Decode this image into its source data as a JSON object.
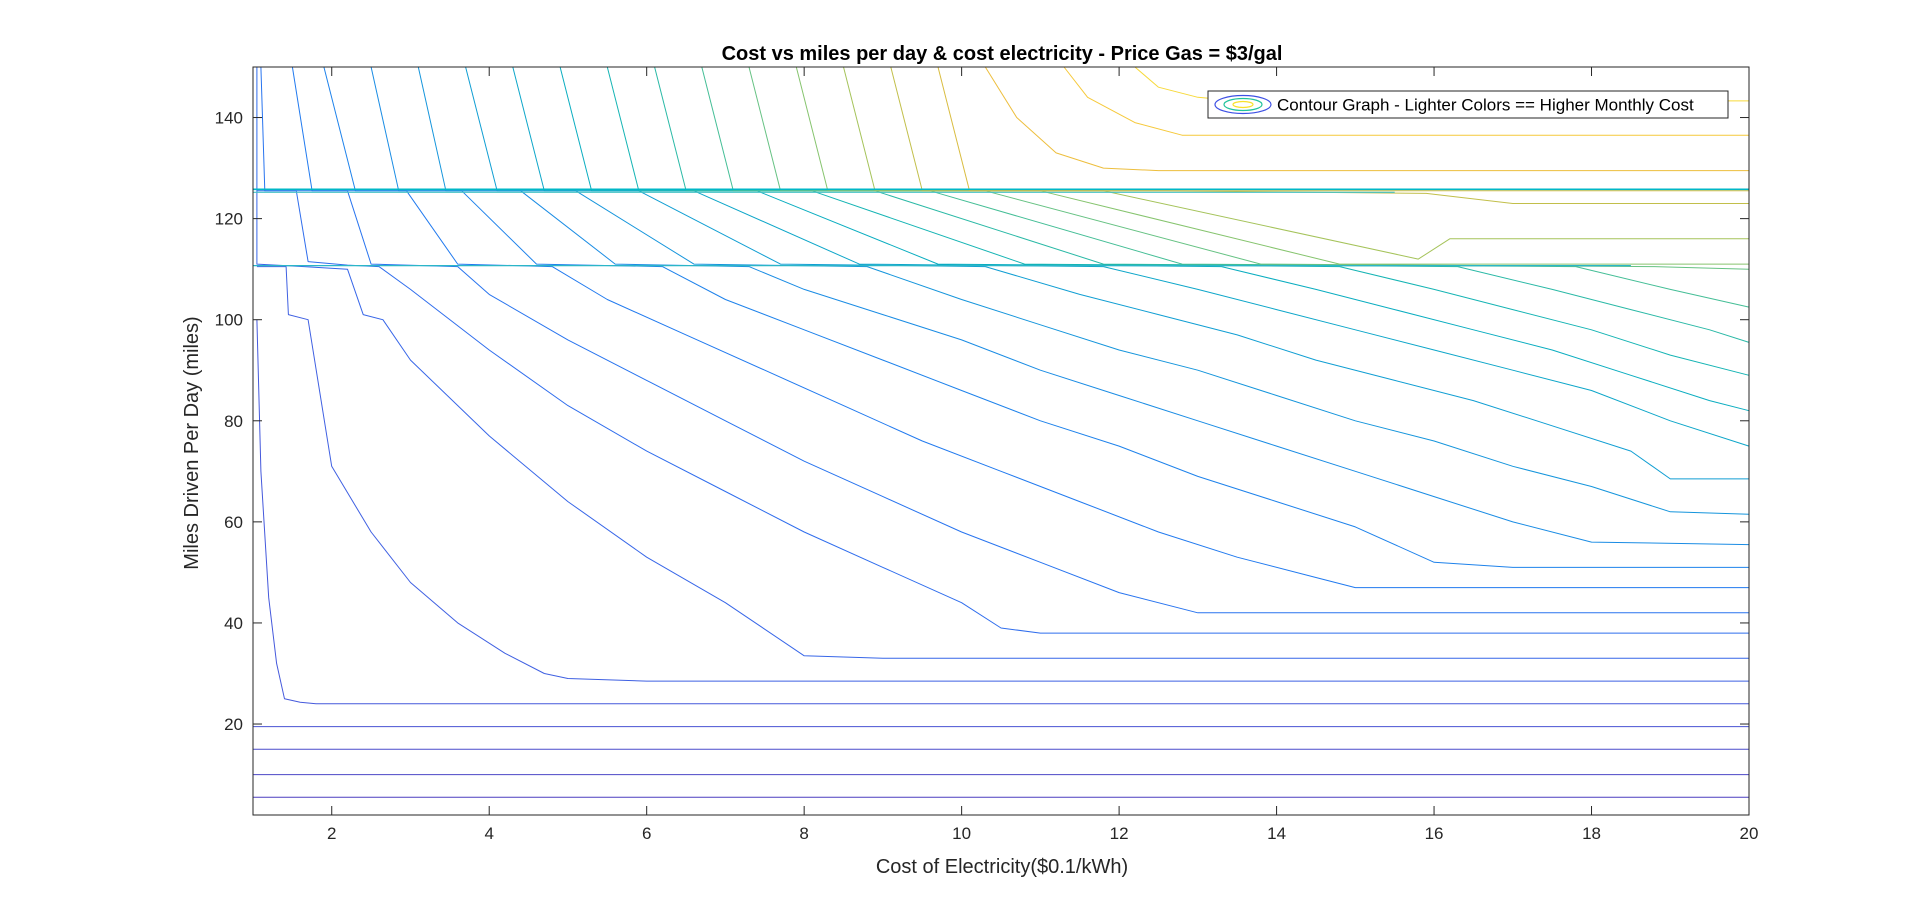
{
  "chart_data": {
    "type": "contour",
    "title": "Cost vs miles per day & cost electricity  - Price Gas = $3/gal",
    "xlabel": "Cost of Electricity($0.1/kWh)",
    "ylabel": "Miles Driven Per Day (miles)",
    "xlim": [
      1,
      20
    ],
    "ylim": [
      2,
      150
    ],
    "xticks": [
      2,
      4,
      6,
      8,
      10,
      12,
      14,
      16,
      18,
      20
    ],
    "yticks": [
      20,
      40,
      60,
      80,
      100,
      120,
      140
    ],
    "grid": false,
    "legend": {
      "label": "Contour Graph - Lighter Colors == Higher Monthly Cost",
      "position": "top-right"
    },
    "colormap": "parula",
    "colors": [
      "#3e26a8",
      "#3d50e4",
      "#2d74f5",
      "#1996de",
      "#0bb1bf",
      "#21c39b",
      "#58cc6f",
      "#93c846",
      "#c6bd3a",
      "#eec13f",
      "#f9e12a",
      "#f9fb15"
    ],
    "contour_levels": [
      {
        "color": "#4b3fbf",
        "points": [
          [
            1,
            5.5
          ],
          [
            20,
            5.5
          ]
        ]
      },
      {
        "color": "#4b46c6",
        "points": [
          [
            1,
            10
          ],
          [
            20,
            10
          ]
        ]
      },
      {
        "color": "#4a4ccc",
        "points": [
          [
            1,
            15
          ],
          [
            20,
            15
          ]
        ]
      },
      {
        "color": "#4852d3",
        "points": [
          [
            1,
            19.5
          ],
          [
            20,
            19.5
          ]
        ]
      },
      {
        "color": "#4559dc",
        "points": [
          [
            1.05,
            100
          ],
          [
            1.1,
            70
          ],
          [
            1.2,
            45
          ],
          [
            1.3,
            32
          ],
          [
            1.4,
            25
          ],
          [
            1.6,
            24.3
          ],
          [
            1.8,
            24
          ],
          [
            20,
            24
          ]
        ]
      },
      {
        "color": "#3f60e2",
        "points": [
          [
            1.05,
            110.5
          ],
          [
            1.42,
            110.5
          ],
          [
            1.45,
            101
          ],
          [
            1.7,
            100
          ],
          [
            2.0,
            71
          ],
          [
            2.5,
            58
          ],
          [
            3.0,
            48
          ],
          [
            3.6,
            40
          ],
          [
            4.2,
            34
          ],
          [
            4.7,
            30
          ],
          [
            5.0,
            29
          ],
          [
            6,
            28.5
          ],
          [
            20,
            28.5
          ]
        ]
      },
      {
        "color": "#3766e8",
        "points": [
          [
            1.05,
            125.5
          ],
          [
            1.05,
            111
          ],
          [
            1.65,
            110.5
          ],
          [
            2.2,
            110
          ],
          [
            2.4,
            101
          ],
          [
            2.65,
            100
          ],
          [
            3.0,
            92
          ],
          [
            4.0,
            77
          ],
          [
            5.0,
            64
          ],
          [
            6.0,
            53
          ],
          [
            7.0,
            44
          ],
          [
            8.0,
            33.5
          ],
          [
            9,
            33
          ],
          [
            20,
            33
          ]
        ]
      },
      {
        "color": "#2f6ded",
        "points": [
          [
            1.05,
            150
          ],
          [
            1.05,
            125.5
          ],
          [
            1.55,
            125.5
          ],
          [
            1.7,
            111.5
          ],
          [
            2.2,
            110.8
          ],
          [
            2.6,
            110.5
          ],
          [
            3.0,
            106
          ],
          [
            4.0,
            94
          ],
          [
            5.0,
            83
          ],
          [
            6.0,
            74
          ],
          [
            7.0,
            66
          ],
          [
            8.0,
            58
          ],
          [
            9.0,
            51
          ],
          [
            10.0,
            44
          ],
          [
            10.5,
            39
          ],
          [
            11,
            38
          ],
          [
            20,
            38
          ]
        ]
      },
      {
        "color": "#2874ef",
        "points": [
          [
            1.1,
            150
          ],
          [
            1.15,
            125.5
          ],
          [
            2.2,
            125.5
          ],
          [
            2.5,
            111
          ],
          [
            3.6,
            110.5
          ],
          [
            4.0,
            105
          ],
          [
            5.0,
            96
          ],
          [
            6.0,
            88
          ],
          [
            7.0,
            80
          ],
          [
            8.0,
            72
          ],
          [
            9.0,
            65
          ],
          [
            10.0,
            58
          ],
          [
            11.0,
            52
          ],
          [
            12.0,
            46
          ],
          [
            13.0,
            42
          ],
          [
            20,
            42
          ]
        ]
      },
      {
        "color": "#217aef",
        "points": [
          [
            1.5,
            150
          ],
          [
            1.75,
            125.5
          ],
          [
            2.95,
            125.5
          ],
          [
            3.6,
            111
          ],
          [
            4.8,
            110.5
          ],
          [
            5.5,
            104
          ],
          [
            6.5,
            97
          ],
          [
            7.5,
            90
          ],
          [
            8.5,
            83
          ],
          [
            9.5,
            76
          ],
          [
            10.5,
            70
          ],
          [
            11.5,
            64
          ],
          [
            12.5,
            58
          ],
          [
            13.5,
            53
          ],
          [
            14.5,
            49
          ],
          [
            15.0,
            47
          ],
          [
            20,
            47
          ]
        ]
      },
      {
        "color": "#1e82eb",
        "points": [
          [
            1.9,
            150
          ],
          [
            2.3,
            125.5
          ],
          [
            3.65,
            125.5
          ],
          [
            4.6,
            111
          ],
          [
            6.2,
            110.5
          ],
          [
            7.0,
            104
          ],
          [
            8.0,
            98
          ],
          [
            9.0,
            92
          ],
          [
            10.0,
            86
          ],
          [
            11.0,
            80
          ],
          [
            12.0,
            75
          ],
          [
            13.0,
            69
          ],
          [
            14.0,
            64
          ],
          [
            15.0,
            59
          ],
          [
            16.0,
            52
          ],
          [
            17.0,
            51
          ],
          [
            20,
            51
          ]
        ]
      },
      {
        "color": "#1a8ce4",
        "points": [
          [
            2.5,
            150
          ],
          [
            2.85,
            125.5
          ],
          [
            4.4,
            125.5
          ],
          [
            5.6,
            111
          ],
          [
            7.3,
            110.5
          ],
          [
            8.0,
            106
          ],
          [
            9.0,
            101
          ],
          [
            10.0,
            96
          ],
          [
            11.0,
            90
          ],
          [
            12.0,
            85
          ],
          [
            13.0,
            80
          ],
          [
            14.0,
            75
          ],
          [
            15.0,
            70
          ],
          [
            16.0,
            65
          ],
          [
            17.0,
            60
          ],
          [
            18.0,
            56
          ],
          [
            20,
            55.5
          ]
        ]
      },
      {
        "color": "#1595dc",
        "points": [
          [
            3.1,
            150
          ],
          [
            3.45,
            125.5
          ],
          [
            5.1,
            125.5
          ],
          [
            6.6,
            111
          ],
          [
            8.8,
            110.5
          ],
          [
            10.0,
            104
          ],
          [
            11.0,
            99
          ],
          [
            12.0,
            94
          ],
          [
            13.0,
            90
          ],
          [
            14.0,
            85
          ],
          [
            15.0,
            80
          ],
          [
            16.0,
            76
          ],
          [
            17.0,
            71
          ],
          [
            18.0,
            67
          ],
          [
            19.0,
            62
          ],
          [
            20,
            61.5
          ]
        ]
      },
      {
        "color": "#109ed3",
        "points": [
          [
            3.7,
            150
          ],
          [
            4.1,
            125.5
          ],
          [
            5.9,
            125.5
          ],
          [
            7.7,
            111
          ],
          [
            10.3,
            110.5
          ],
          [
            11.5,
            105
          ],
          [
            12.5,
            101
          ],
          [
            13.5,
            97
          ],
          [
            14.5,
            92
          ],
          [
            15.5,
            88
          ],
          [
            16.5,
            84
          ],
          [
            17.5,
            79
          ],
          [
            18.5,
            74
          ],
          [
            19.0,
            68.5
          ],
          [
            20,
            68.5
          ]
        ]
      },
      {
        "color": "#0da6c9",
        "points": [
          [
            4.3,
            150
          ],
          [
            4.7,
            125.5
          ],
          [
            6.6,
            125.5
          ],
          [
            8.7,
            111
          ],
          [
            11.8,
            110.5
          ],
          [
            13.0,
            106
          ],
          [
            14.0,
            102
          ],
          [
            15.0,
            98
          ],
          [
            16.0,
            94
          ],
          [
            17.0,
            90
          ],
          [
            18.0,
            86
          ],
          [
            19.0,
            80
          ],
          [
            20,
            75
          ]
        ]
      },
      {
        "color": "#0aadc0",
        "points": [
          [
            4.9,
            150
          ],
          [
            5.3,
            125.5
          ],
          [
            7.4,
            125.5
          ],
          [
            9.7,
            111
          ],
          [
            13.3,
            110.5
          ],
          [
            14.5,
            106
          ],
          [
            15.5,
            102
          ],
          [
            16.5,
            98
          ],
          [
            17.5,
            94
          ],
          [
            18.5,
            89
          ],
          [
            19.5,
            84
          ],
          [
            20,
            82
          ]
        ]
      },
      {
        "color": "#15b4b4",
        "points": [
          [
            5.5,
            150
          ],
          [
            5.9,
            125.5
          ],
          [
            8.1,
            125.5
          ],
          [
            10.8,
            111
          ],
          [
            14.8,
            110.5
          ],
          [
            16.0,
            106
          ],
          [
            17.0,
            102
          ],
          [
            18.0,
            98
          ],
          [
            19.0,
            93
          ],
          [
            20,
            89
          ]
        ]
      },
      {
        "color": "#2ab9a6",
        "points": [
          [
            6.1,
            150
          ],
          [
            6.5,
            125.5
          ],
          [
            8.9,
            125.5
          ],
          [
            11.8,
            111
          ],
          [
            16.3,
            110.5
          ],
          [
            17.5,
            106
          ],
          [
            18.5,
            102
          ],
          [
            19.5,
            98
          ],
          [
            20,
            95.5
          ]
        ]
      },
      {
        "color": "#44be96",
        "points": [
          [
            6.7,
            150
          ],
          [
            7.1,
            125.5
          ],
          [
            9.6,
            125.5
          ],
          [
            12.8,
            111
          ],
          [
            17.8,
            110.5
          ],
          [
            19.0,
            106
          ],
          [
            20,
            102.5
          ]
        ]
      },
      {
        "color": "#66c283",
        "points": [
          [
            7.3,
            150
          ],
          [
            7.7,
            125.5
          ],
          [
            10.3,
            125.5
          ],
          [
            13.8,
            111
          ],
          [
            18.8,
            110.5
          ],
          [
            20,
            110
          ]
        ]
      },
      {
        "color": "#86c46e",
        "points": [
          [
            7.9,
            150
          ],
          [
            8.3,
            125.5
          ],
          [
            11.0,
            125.5
          ],
          [
            14.8,
            111
          ],
          [
            20,
            111
          ]
        ]
      },
      {
        "color": "#a5c35a",
        "points": [
          [
            8.5,
            150
          ],
          [
            8.9,
            125.5
          ],
          [
            11.8,
            125.5
          ],
          [
            15.8,
            112
          ],
          [
            16.2,
            116
          ],
          [
            20,
            116
          ]
        ]
      },
      {
        "color": "#c2bf4a",
        "points": [
          [
            9.1,
            150
          ],
          [
            9.5,
            125.5
          ],
          [
            12.6,
            125.5
          ],
          [
            15.9,
            125
          ],
          [
            17.0,
            123
          ],
          [
            20,
            123
          ]
        ]
      },
      {
        "color": "#d9bc40",
        "points": [
          [
            9.7,
            150
          ],
          [
            10.1,
            125.5
          ],
          [
            20,
            125.5
          ]
        ]
      },
      {
        "color": "#edbe3d",
        "points": [
          [
            10.3,
            150
          ],
          [
            10.7,
            140
          ],
          [
            11.2,
            133
          ],
          [
            11.8,
            130
          ],
          [
            12.5,
            129.5
          ],
          [
            20,
            129.5
          ]
        ]
      },
      {
        "color": "#f6c93a",
        "points": [
          [
            11.3,
            150
          ],
          [
            11.6,
            144
          ],
          [
            12.2,
            139
          ],
          [
            12.8,
            136.5
          ],
          [
            20,
            136.5
          ]
        ]
      },
      {
        "color": "#f7d93a",
        "points": [
          [
            12.2,
            150
          ],
          [
            12.5,
            146
          ],
          [
            13.0,
            144
          ],
          [
            13.5,
            143.3
          ],
          [
            20,
            143.3
          ]
        ]
      },
      {
        "color": "#00b7c7",
        "points": [
          [
            1.0,
            125.8
          ],
          [
            20,
            125.8
          ]
        ],
        "width": 1.6
      },
      {
        "color": "#46c2c6",
        "points": [
          [
            1.0,
            125.2
          ],
          [
            15.5,
            125.2
          ]
        ],
        "width": 1.2
      },
      {
        "color": "#2bb6c8",
        "points": [
          [
            1.0,
            110.7
          ],
          [
            18.5,
            110.7
          ]
        ],
        "width": 1.3
      }
    ]
  }
}
